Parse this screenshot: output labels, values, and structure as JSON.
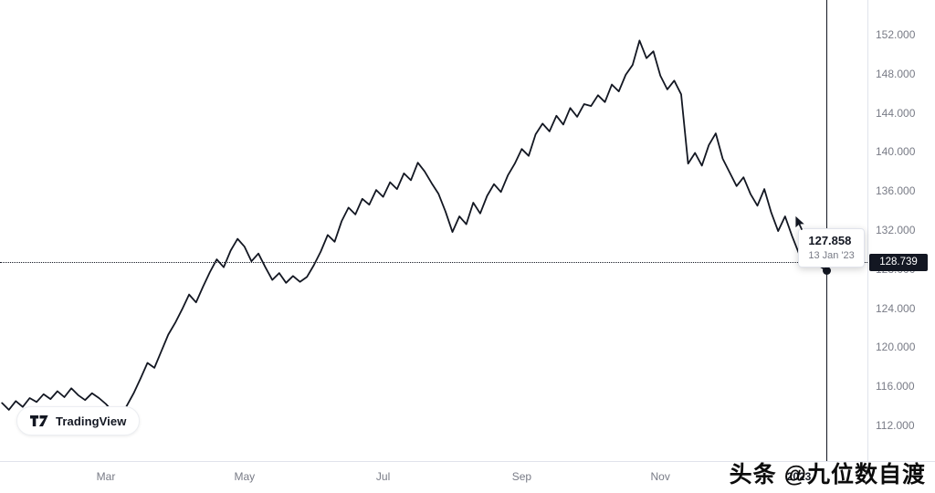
{
  "logo": {
    "text": "TradingView"
  },
  "watermark": "头条 @九位数自渡",
  "tooltip": {
    "price": "127.858",
    "date": "13 Jan '23"
  },
  "price_axis": {
    "current_price_label": "128.739"
  },
  "chart_data": {
    "type": "line",
    "title": "",
    "x_unit": "month index (Jan 2022 = 0)",
    "x_start": 0.5,
    "x_step": 0.1,
    "values": [
      114.3,
      113.6,
      114.5,
      113.9,
      114.8,
      114.4,
      115.2,
      114.7,
      115.5,
      114.9,
      115.8,
      115.1,
      114.6,
      115.3,
      114.8,
      114.2,
      113.4,
      112.9,
      114.0,
      115.3,
      116.8,
      118.4,
      117.9,
      119.6,
      121.3,
      122.5,
      123.9,
      125.4,
      124.6,
      126.2,
      127.7,
      129.0,
      128.2,
      129.9,
      131.1,
      130.3,
      128.8,
      129.6,
      128.2,
      126.9,
      127.6,
      126.6,
      127.3,
      126.7,
      127.2,
      128.4,
      129.8,
      131.5,
      130.8,
      132.9,
      134.3,
      133.6,
      135.2,
      134.6,
      136.1,
      135.4,
      136.9,
      136.2,
      137.8,
      137.1,
      138.9,
      138.0,
      136.8,
      135.7,
      133.9,
      131.8,
      133.4,
      132.6,
      134.8,
      133.7,
      135.5,
      136.7,
      135.9,
      137.6,
      138.8,
      140.3,
      139.6,
      141.8,
      142.9,
      142.1,
      143.7,
      142.8,
      144.5,
      143.6,
      144.9,
      144.7,
      145.8,
      145.1,
      146.9,
      146.2,
      147.9,
      148.9,
      151.4,
      149.6,
      150.3,
      147.8,
      146.4,
      147.3,
      145.9,
      138.8,
      139.9,
      138.6,
      140.7,
      141.9,
      139.3,
      137.9,
      136.5,
      137.4,
      135.7,
      134.5,
      136.2,
      133.8,
      131.9,
      133.4,
      131.4,
      129.6,
      131.5,
      129.2,
      128.3,
      127.858
    ],
    "ylim": [
      112,
      152
    ],
    "xlim": [
      0.47,
      13.0
    ],
    "grid": false,
    "line_color": "#131722",
    "y_ticks": [
      152,
      148,
      144,
      140,
      136,
      132,
      128,
      124,
      120,
      116,
      112
    ],
    "x_ticks": [
      {
        "label": "Mar",
        "t": 2
      },
      {
        "label": "May",
        "t": 4
      },
      {
        "label": "Jul",
        "t": 6
      },
      {
        "label": "Sep",
        "t": 8
      },
      {
        "label": "Nov",
        "t": 10
      },
      {
        "label": "2023",
        "t": 12,
        "emphasis": true
      }
    ],
    "current_price": 128.739,
    "crosshair": {
      "t": 12.4,
      "value": 127.858,
      "date": "13 Jan '23"
    }
  }
}
